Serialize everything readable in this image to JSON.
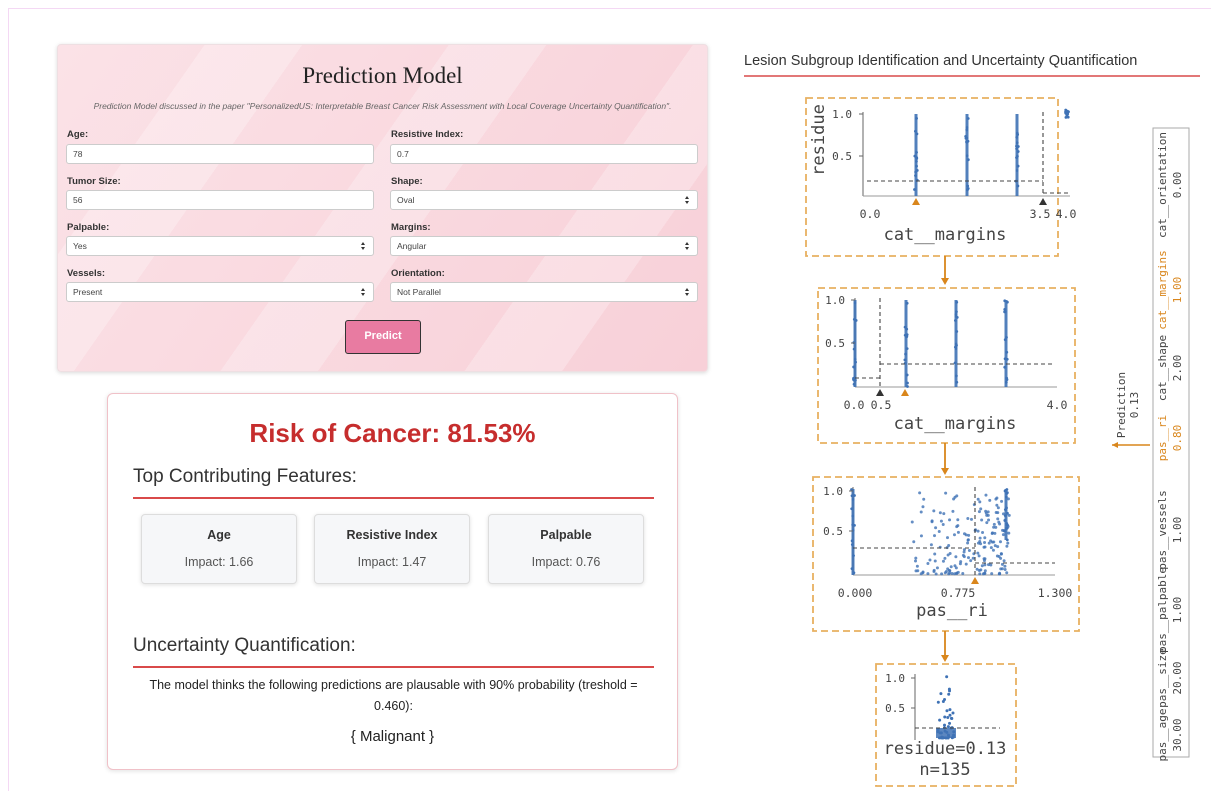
{
  "form": {
    "title": "Prediction Model",
    "subtitle": "Prediction Model discussed in the paper \"PersonalizedUS: Interpretable Breast Cancer Risk Assessment with Local Coverage Uncertainty Quantification\".",
    "fields": [
      {
        "label": "Age:",
        "value": "78"
      },
      {
        "label": "Resistive Index:",
        "value": "0.7"
      },
      {
        "label": "Tumor Size:",
        "value": "56"
      },
      {
        "label": "Shape:",
        "value": "Oval"
      },
      {
        "label": "Palpable:",
        "value": "Yes"
      },
      {
        "label": "Margins:",
        "value": "Angular"
      },
      {
        "label": "Vessels:",
        "value": "Present"
      },
      {
        "label": "Orientation:",
        "value": "Not Parallel"
      }
    ],
    "button": "Predict"
  },
  "result": {
    "risk": "Risk of Cancer: 81.53%",
    "features_heading": "Top Contributing Features:",
    "features": [
      {
        "name": "Age",
        "impact": "Impact: 1.66"
      },
      {
        "name": "Resistive Index",
        "impact": "Impact: 1.47"
      },
      {
        "name": "Palpable",
        "impact": "Impact: 0.76"
      }
    ],
    "uncertainty_heading": "Uncertainty Quantification:",
    "uncertainty_text": "The model thinks the following predictions are plausable with 90% probability (treshold = 0.460):",
    "prediction_set": "{ Malignant }"
  },
  "tree": {
    "title": "Lesion Subgroup Identification and Uncertainty Quantification",
    "nodes": [
      {
        "ylabel": "residue",
        "yticks": [
          "1.0",
          "0.5"
        ],
        "xticks": [
          "0.0",
          "3.5",
          "4.0"
        ],
        "xlabel": "cat__margins"
      },
      {
        "yticks": [
          "1.0",
          "0.5"
        ],
        "xticks": [
          "0.0",
          "0.5",
          "4.0"
        ],
        "xlabel": "cat__margins"
      },
      {
        "yticks": [
          "1.0",
          "0.5"
        ],
        "xticks": [
          "0.000",
          "0.775",
          "1.300"
        ],
        "xlabel": "pas__ri"
      }
    ],
    "leaf": {
      "yticks": [
        "1.0",
        "0.5"
      ],
      "residue": "residue=0.13",
      "n": "n=135"
    },
    "prediction": {
      "label": "Prediction",
      "value": "0.13"
    },
    "sample": [
      {
        "name": "pas__age",
        "value": "30.00"
      },
      {
        "name": "pas__size",
        "value": "20.00"
      },
      {
        "name": "pas__palpable",
        "value": "1.00"
      },
      {
        "name": "pas__vessels",
        "value": "1.00"
      },
      {
        "name": "pas__ri",
        "value": "0.80",
        "highlight": true
      },
      {
        "name": "cat__shape",
        "value": "2.00"
      },
      {
        "name": "cat__margins",
        "value": "1.00",
        "highlight": true
      },
      {
        "name": "cat__orientation",
        "value": "0.00"
      }
    ]
  }
}
